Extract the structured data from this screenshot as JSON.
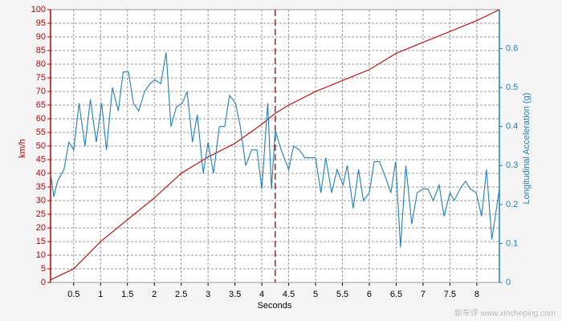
{
  "chart_data": {
    "type": "line",
    "xlabel": "Seconds",
    "ylabel": "km/h",
    "y2label": "Longitudinal Acceleration (g)",
    "watermark": "新车评 www.xincheping.com",
    "xlim": [
      0.07,
      8.42
    ],
    "xticks": [
      0.5,
      1,
      1.5,
      2,
      2.5,
      3,
      3.5,
      4,
      4.5,
      5,
      5.5,
      6,
      6.5,
      7,
      7.5,
      8
    ],
    "ylim": [
      0,
      100
    ],
    "yticks": [
      0,
      5,
      10,
      15,
      20,
      25,
      30,
      35,
      40,
      45,
      50,
      55,
      60,
      65,
      70,
      75,
      80,
      85,
      90,
      95,
      100
    ],
    "y2lim": [
      0,
      0.7
    ],
    "y2ticks": [
      0,
      0.1,
      0.2,
      0.3,
      0.4,
      0.5,
      0.6
    ],
    "grid": true,
    "cursor_x": 4.25,
    "series": [
      {
        "color": "#c00000",
        "x": [
          0.07,
          0.5,
          1,
          1.5,
          2,
          2.5,
          3,
          3.5,
          4,
          4.25,
          4.5,
          5,
          5.5,
          6,
          6.5,
          7,
          7.5,
          8,
          8.42
        ],
        "values": [
          1,
          5,
          15,
          23,
          31,
          40,
          46,
          51,
          58,
          62,
          65,
          70,
          74,
          78,
          84,
          88,
          92,
          96,
          100
        ]
      },
      {
        "color": "#1f7fbf",
        "axis": "y2",
        "x": [
          0.07,
          0.13,
          0.2,
          0.32,
          0.41,
          0.5,
          0.6,
          0.71,
          0.81,
          0.92,
          1.02,
          1.11,
          1.22,
          1.33,
          1.42,
          1.52,
          1.61,
          1.71,
          1.82,
          1.92,
          2.01,
          2.12,
          2.22,
          2.31,
          2.41,
          2.52,
          2.61,
          2.71,
          2.8,
          2.91,
          3.0,
          3.1,
          3.21,
          3.31,
          3.4,
          3.51,
          3.6,
          3.7,
          3.81,
          3.91,
          4.0,
          4.11,
          4.18,
          4.25,
          4.36,
          4.5,
          4.59,
          4.7,
          4.8,
          4.89,
          5.0,
          5.1,
          5.19,
          5.3,
          5.4,
          5.51,
          5.59,
          5.7,
          5.8,
          5.89,
          6.0,
          6.09,
          6.19,
          6.3,
          6.4,
          6.49,
          6.58,
          6.68,
          6.79,
          6.89,
          7.0,
          7.09,
          7.19,
          7.3,
          7.39,
          7.5,
          7.58,
          7.69,
          7.79,
          7.88,
          7.99,
          8.09,
          8.18,
          8.28,
          8.42
        ],
        "values": [
          0.28,
          0.22,
          0.26,
          0.29,
          0.36,
          0.34,
          0.46,
          0.35,
          0.47,
          0.36,
          0.46,
          0.34,
          0.5,
          0.44,
          0.54,
          0.54,
          0.46,
          0.44,
          0.49,
          0.51,
          0.52,
          0.51,
          0.59,
          0.4,
          0.45,
          0.46,
          0.49,
          0.36,
          0.43,
          0.28,
          0.36,
          0.28,
          0.4,
          0.4,
          0.48,
          0.46,
          0.4,
          0.3,
          0.34,
          0.34,
          0.24,
          0.46,
          0.24,
          0.39,
          0.34,
          0.29,
          0.35,
          0.34,
          0.32,
          0.32,
          0.32,
          0.23,
          0.32,
          0.23,
          0.29,
          0.25,
          0.3,
          0.19,
          0.29,
          0.21,
          0.23,
          0.31,
          0.31,
          0.27,
          0.23,
          0.31,
          0.09,
          0.3,
          0.15,
          0.23,
          0.24,
          0.24,
          0.21,
          0.25,
          0.17,
          0.23,
          0.21,
          0.24,
          0.26,
          0.24,
          0.23,
          0.17,
          0.29,
          0.11,
          0.24
        ]
      }
    ]
  }
}
